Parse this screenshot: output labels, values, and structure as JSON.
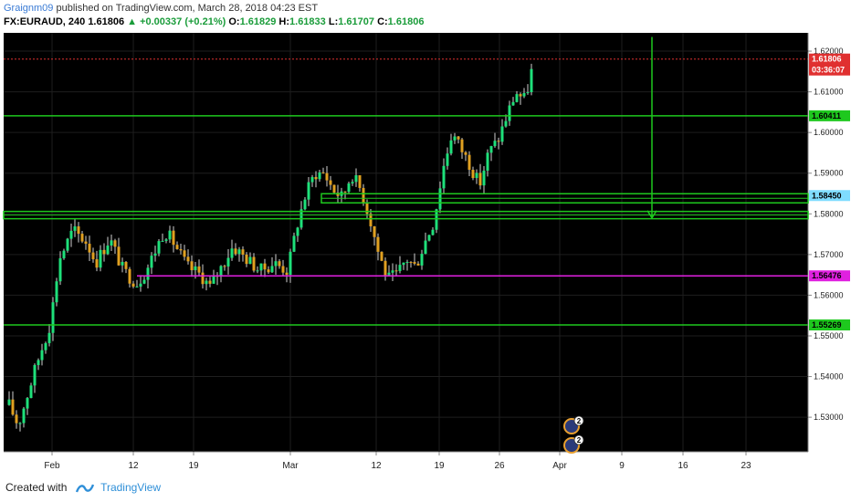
{
  "header": {
    "author": "Graignm09",
    "published_text": "published on TradingView.com, March 28, 2018 04:23 EST"
  },
  "ohlc": {
    "symbol": "FX:EURAUD, 240",
    "last": "1.61806",
    "change": "▲ +0.00337 (+0.21%)",
    "o_label": "O:",
    "o": "1.61829",
    "h_label": "H:",
    "h": "1.61833",
    "l_label": "L:",
    "l": "1.61707",
    "c_label": "C:",
    "c": "1.61806"
  },
  "footer": {
    "created_with": "Created with",
    "brand": "TradingView"
  },
  "colors": {
    "background": "#000000",
    "up": "#1ee07a",
    "down": "#e0a020",
    "level": "#1ec81e",
    "support": "#e020e0",
    "last_price": "#e03030",
    "zone_label": "#7fdcff"
  },
  "chart_data": {
    "type": "candlestick",
    "symbol": "EURAUD",
    "timeframe": "240",
    "ylim": [
      1.5215,
      1.6245
    ],
    "y_ticks": [
      1.53,
      1.54,
      1.55,
      1.56,
      1.57,
      1.58,
      1.59,
      1.6,
      1.61,
      1.62
    ],
    "y_tick_labels": [
      "1.53000",
      "1.54000",
      "1.55000",
      "1.56000",
      "1.57000",
      "1.58000",
      "1.59000",
      "1.60000",
      "1.61000",
      "1.62000"
    ],
    "x_tick_labels": [
      "Feb",
      "12",
      "19",
      "Mar",
      "12",
      "19",
      "26",
      "Apr",
      "9",
      "16",
      "23"
    ],
    "close_path": [
      [
        0,
        1.533
      ],
      [
        10,
        1.528
      ],
      [
        30,
        1.543
      ],
      [
        45,
        1.553
      ],
      [
        55,
        1.569
      ],
      [
        70,
        1.576
      ],
      [
        85,
        1.573
      ],
      [
        95,
        1.568
      ],
      [
        110,
        1.574
      ],
      [
        125,
        1.566
      ],
      [
        140,
        1.563
      ],
      [
        150,
        1.566
      ],
      [
        160,
        1.571
      ],
      [
        170,
        1.576
      ],
      [
        180,
        1.573
      ],
      [
        195,
        1.567
      ],
      [
        210,
        1.565
      ],
      [
        220,
        1.562
      ],
      [
        235,
        1.568
      ],
      [
        245,
        1.572
      ],
      [
        260,
        1.569
      ],
      [
        275,
        1.566
      ],
      [
        290,
        1.568
      ],
      [
        305,
        1.566
      ],
      [
        315,
        1.577
      ],
      [
        325,
        1.585
      ],
      [
        335,
        1.59
      ],
      [
        345,
        1.59
      ],
      [
        355,
        1.586
      ],
      [
        365,
        1.584
      ],
      [
        375,
        1.59
      ],
      [
        385,
        1.586
      ],
      [
        395,
        1.579
      ],
      [
        405,
        1.57
      ],
      [
        415,
        1.564
      ],
      [
        425,
        1.565
      ],
      [
        435,
        1.569
      ],
      [
        445,
        1.567
      ],
      [
        455,
        1.573
      ],
      [
        465,
        1.578
      ],
      [
        475,
        1.591
      ],
      [
        485,
        1.6
      ],
      [
        495,
        1.596
      ],
      [
        505,
        1.592
      ],
      [
        515,
        1.587
      ],
      [
        525,
        1.595
      ],
      [
        535,
        1.598
      ],
      [
        545,
        1.604
      ],
      [
        555,
        1.61
      ],
      [
        565,
        1.608
      ],
      [
        575,
        1.618
      ]
    ],
    "levels": [
      {
        "price": 1.60411,
        "label": "1.60411",
        "kind": "resistance"
      },
      {
        "price": 1.5845,
        "label": "1.58450",
        "kind": "zone"
      },
      {
        "price": 1.5797,
        "label": "",
        "kind": "zone"
      },
      {
        "price": 1.56476,
        "label": "1.56476",
        "kind": "support"
      },
      {
        "price": 1.55269,
        "label": "1.55269",
        "kind": "support"
      }
    ],
    "last_price": {
      "price": 1.61806,
      "label": "1.61806",
      "countdown": "03:36:07"
    },
    "target_arrow": {
      "from": 1.6235,
      "to": 1.579
    },
    "event_badges": [
      {
        "count": "2"
      },
      {
        "count": "2"
      }
    ]
  }
}
